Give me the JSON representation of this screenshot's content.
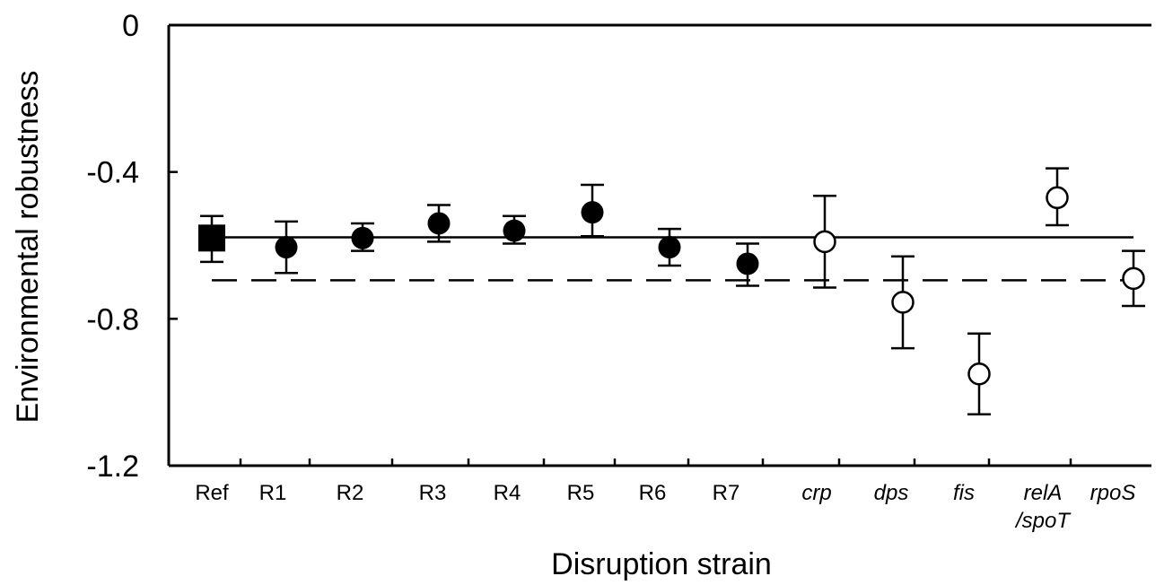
{
  "chart_data": {
    "type": "scatter",
    "title": "",
    "xlabel": "Disruption strain",
    "ylabel": "Environmental robustness",
    "ylim": [
      -1.2,
      0
    ],
    "y_ticks": [
      0,
      -0.4,
      -0.8,
      -1.2
    ],
    "y_tick_labels": [
      "0",
      "-0.4",
      "-0.8",
      "-1.2"
    ],
    "grid": false,
    "legend": "none",
    "categories": [
      {
        "label": "Ref",
        "italic": false
      },
      {
        "label": "R1",
        "italic": false
      },
      {
        "label": "R2",
        "italic": false
      },
      {
        "label": "R3",
        "italic": false
      },
      {
        "label": "R4",
        "italic": false
      },
      {
        "label": "R5",
        "italic": false
      },
      {
        "label": "R6",
        "italic": false
      },
      {
        "label": "R7",
        "italic": false
      },
      {
        "label": "crp",
        "italic": true
      },
      {
        "label": "dps",
        "italic": true
      },
      {
        "label": "fis",
        "italic": true
      },
      {
        "label": "relA",
        "label2": "/spoT",
        "italic": true
      },
      {
        "label": "rpoS",
        "italic": true
      }
    ],
    "points": [
      {
        "category": "Ref",
        "y": -0.58,
        "err_low": -0.645,
        "err_high": -0.52,
        "marker": "filled-square"
      },
      {
        "category": "R1",
        "y": -0.605,
        "err_low": -0.675,
        "err_high": -0.535,
        "marker": "filled-circle"
      },
      {
        "category": "R2",
        "y": -0.58,
        "err_low": -0.615,
        "err_high": -0.54,
        "marker": "filled-circle"
      },
      {
        "category": "R3",
        "y": -0.54,
        "err_low": -0.59,
        "err_high": -0.49,
        "marker": "filled-circle"
      },
      {
        "category": "R4",
        "y": -0.56,
        "err_low": -0.595,
        "err_high": -0.52,
        "marker": "filled-circle"
      },
      {
        "category": "R5",
        "y": -0.51,
        "err_low": -0.575,
        "err_high": -0.435,
        "marker": "filled-circle"
      },
      {
        "category": "R6",
        "y": -0.605,
        "err_low": -0.655,
        "err_high": -0.555,
        "marker": "filled-circle"
      },
      {
        "category": "R7",
        "y": -0.65,
        "err_low": -0.71,
        "err_high": -0.595,
        "marker": "filled-circle"
      },
      {
        "category": "crp",
        "y": -0.59,
        "err_low": -0.715,
        "err_high": -0.465,
        "marker": "open-circle"
      },
      {
        "category": "dps",
        "y": -0.755,
        "err_low": -0.88,
        "err_high": -0.63,
        "marker": "open-circle"
      },
      {
        "category": "fis",
        "y": -0.95,
        "err_low": -1.06,
        "err_high": -0.84,
        "marker": "open-circle"
      },
      {
        "category": "relA\n/spoT",
        "y": -0.47,
        "err_low": -0.545,
        "err_high": -0.39,
        "marker": "open-circle"
      },
      {
        "category": "rpoS",
        "y": -0.69,
        "err_low": -0.765,
        "err_high": -0.615,
        "marker": "open-circle"
      }
    ],
    "reference_lines": [
      {
        "y": -0.578,
        "style": "solid"
      },
      {
        "y": -0.695,
        "style": "dashed"
      }
    ]
  }
}
